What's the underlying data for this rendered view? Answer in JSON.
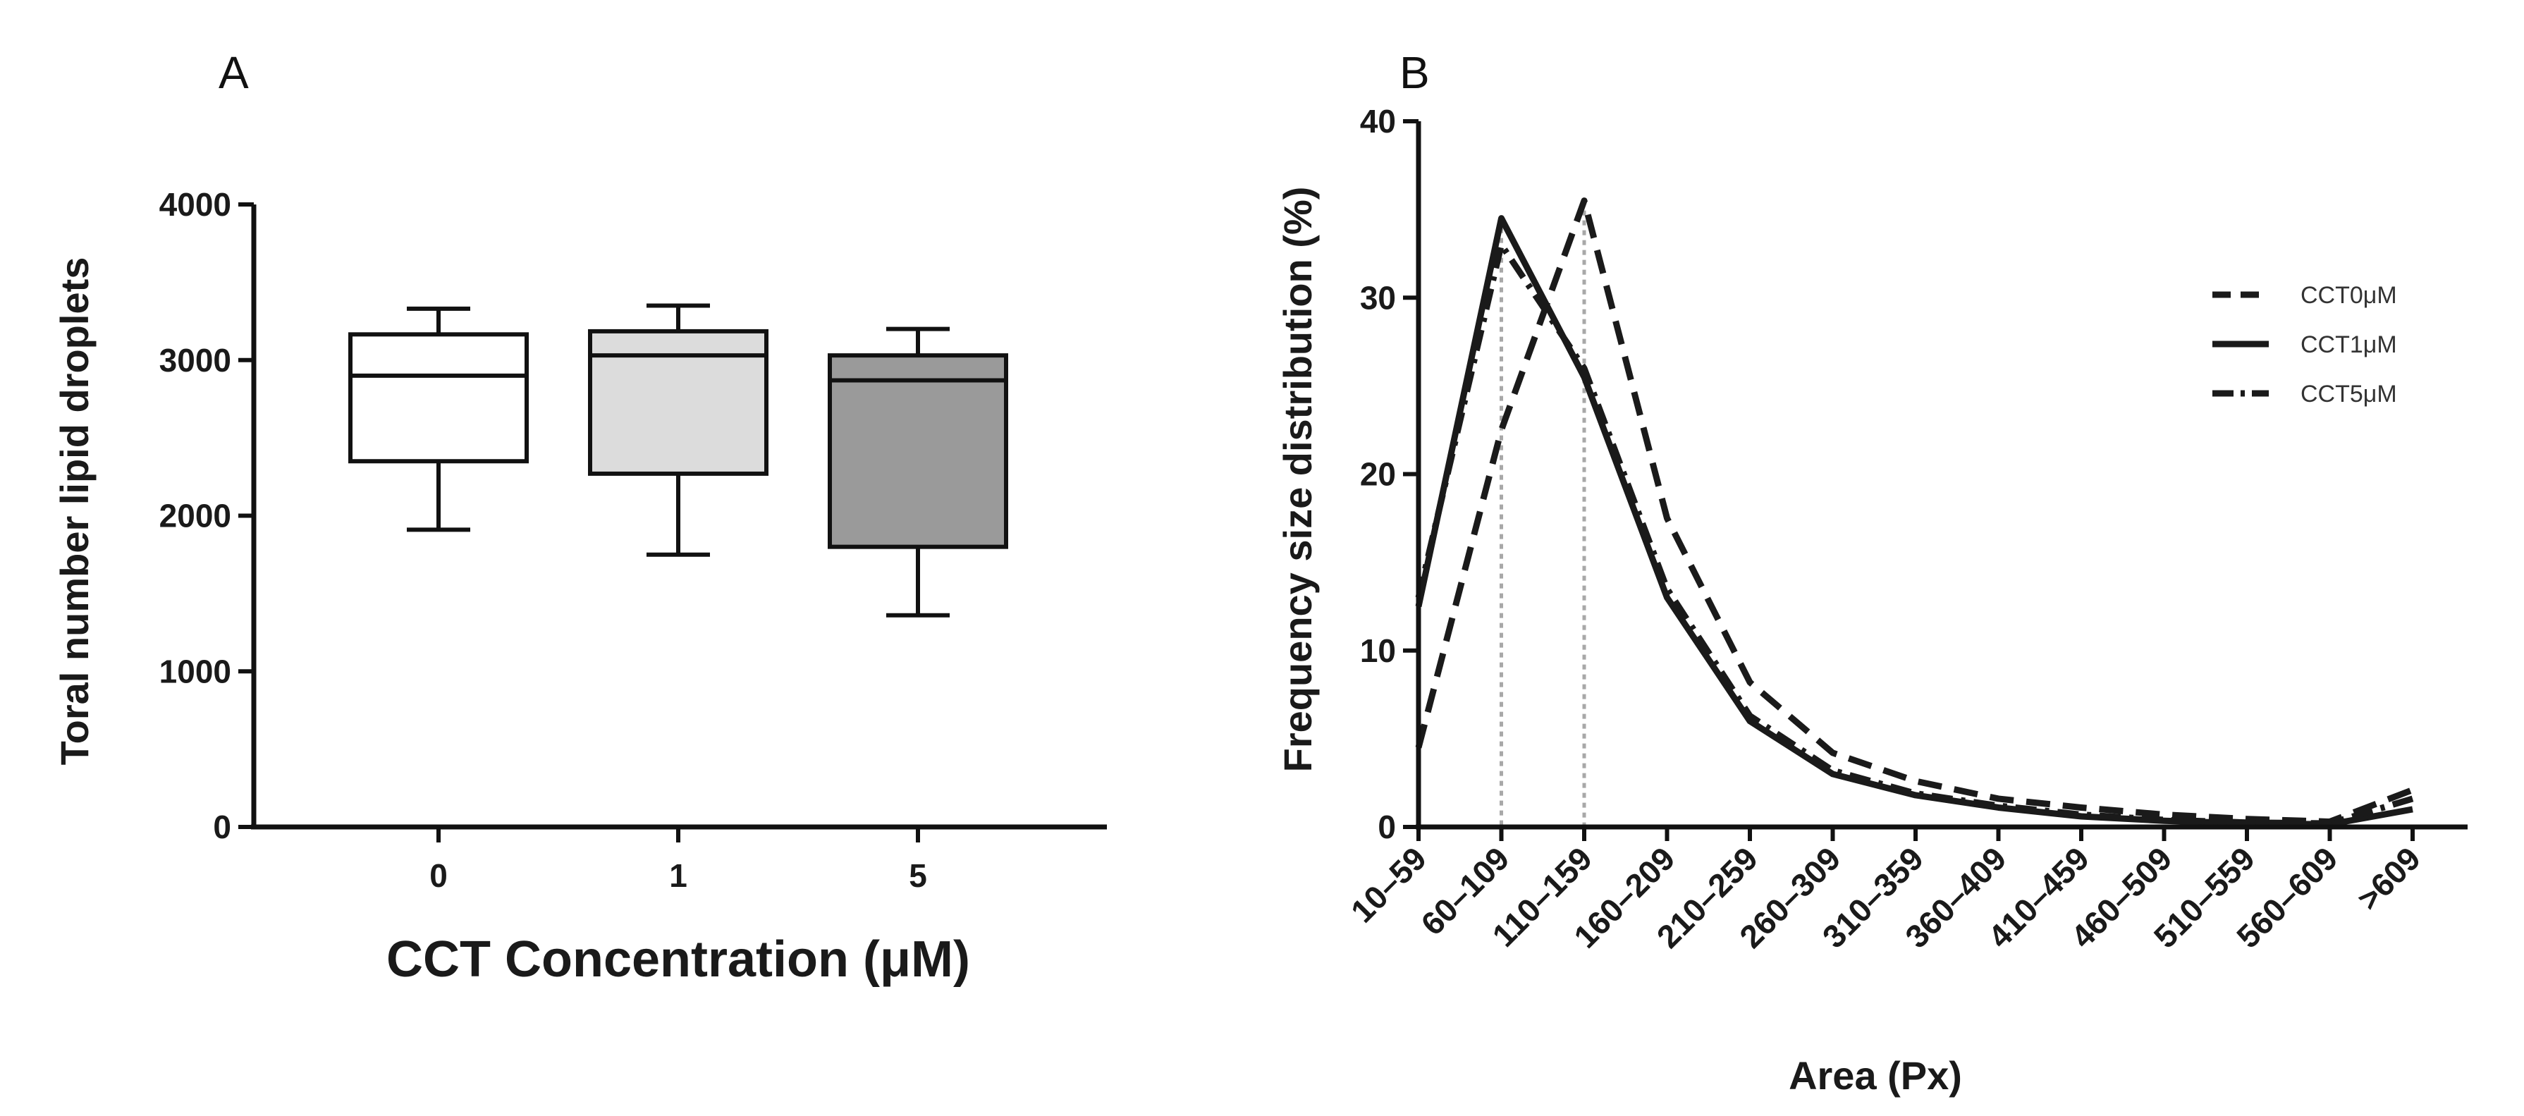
{
  "chart_data": [
    {
      "panel": "A",
      "type": "box",
      "title": "",
      "xlabel": "CCT Concentration (μM)",
      "ylabel": "Toral number lipid droplets",
      "ylim": [
        0,
        4000
      ],
      "yticks": [
        0,
        1000,
        2000,
        3000,
        4000
      ],
      "categories": [
        "0",
        "1",
        "5"
      ],
      "boxes": [
        {
          "category": "0",
          "min": 1910,
          "q1": 2350,
          "median": 2900,
          "q3": 3165,
          "max": 3330,
          "fill": "#ffffff"
        },
        {
          "category": "1",
          "min": 1750,
          "q1": 2270,
          "median": 3030,
          "q3": 3185,
          "max": 3350,
          "fill": "#dcdcdc"
        },
        {
          "category": "5",
          "min": 1360,
          "q1": 1800,
          "median": 2870,
          "q3": 3030,
          "max": 3200,
          "fill": "#9a9a9a"
        }
      ]
    },
    {
      "panel": "B",
      "type": "line",
      "title": "",
      "xlabel": "Area (Px)",
      "ylabel": "Frequency size distribution (%)",
      "ylim": [
        0,
        40
      ],
      "yticks": [
        0,
        10,
        20,
        30,
        40
      ],
      "categories": [
        "10–59",
        "60–109",
        "110–159",
        "160–209",
        "210–259",
        "260–309",
        "310–359",
        "360–409",
        "410–459",
        "460–509",
        "510–559",
        "560–609",
        ">609"
      ],
      "series": [
        {
          "name": "CCT0μM",
          "style": "dashed",
          "values": [
            4.5,
            22.5,
            35.5,
            17.5,
            8.2,
            4.2,
            2.6,
            1.6,
            1.1,
            0.7,
            0.45,
            0.3,
            2.1
          ]
        },
        {
          "name": "CCT1μM",
          "style": "solid",
          "values": [
            12.5,
            34.5,
            25.5,
            13.0,
            6.0,
            3.0,
            1.8,
            1.1,
            0.6,
            0.35,
            0.2,
            0.15,
            1.0
          ]
        },
        {
          "name": "CCT5μM",
          "style": "dashdot",
          "values": [
            13.0,
            33.0,
            26.0,
            13.5,
            6.3,
            3.2,
            1.9,
            1.2,
            0.7,
            0.4,
            0.25,
            0.2,
            1.6
          ]
        }
      ],
      "reference_lines_at": [
        "60–109",
        "110–159"
      ]
    }
  ]
}
